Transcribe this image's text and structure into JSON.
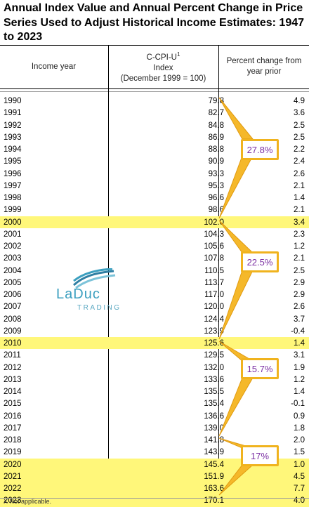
{
  "title": "Annual Index Value and Annual Percent Change in Price Series Used to Adjust Historical Income Estimates: 1947 to 2023",
  "headers": {
    "year": "Income year",
    "index_line1": "C-CPI-U",
    "index_sup": "1",
    "index_line2": "Index",
    "index_line3": "(December 1999 = 100)",
    "pct": "Percent change from year prior"
  },
  "rows": [
    {
      "year": "1990",
      "index": "79.8",
      "pct": "4.9"
    },
    {
      "year": "1991",
      "index": "82.7",
      "pct": "3.6"
    },
    {
      "year": "1992",
      "index": "84.8",
      "pct": "2.5"
    },
    {
      "year": "1993",
      "index": "86.9",
      "pct": "2.5"
    },
    {
      "year": "1994",
      "index": "88.8",
      "pct": "2.2"
    },
    {
      "year": "1995",
      "index": "90.9",
      "pct": "2.4"
    },
    {
      "year": "1996",
      "index": "93.3",
      "pct": "2.6"
    },
    {
      "year": "1997",
      "index": "95.3",
      "pct": "2.1"
    },
    {
      "year": "1998",
      "index": "96.6",
      "pct": "1.4"
    },
    {
      "year": "1999",
      "index": "98.6",
      "pct": "2.1"
    },
    {
      "year": "2000",
      "index": "102.0",
      "pct": "3.4",
      "highlight": true
    },
    {
      "year": "2001",
      "index": "104.3",
      "pct": "2.3"
    },
    {
      "year": "2002",
      "index": "105.6",
      "pct": "1.2"
    },
    {
      "year": "2003",
      "index": "107.8",
      "pct": "2.1"
    },
    {
      "year": "2004",
      "index": "110.5",
      "pct": "2.5"
    },
    {
      "year": "2005",
      "index": "113.7",
      "pct": "2.9"
    },
    {
      "year": "2006",
      "index": "117.0",
      "pct": "2.9"
    },
    {
      "year": "2007",
      "index": "120.0",
      "pct": "2.6"
    },
    {
      "year": "2008",
      "index": "124.4",
      "pct": "3.7"
    },
    {
      "year": "2009",
      "index": "123.9",
      "pct": "-0.4"
    },
    {
      "year": "2010",
      "index": "125.6",
      "pct": "1.4",
      "highlight": true
    },
    {
      "year": "2011",
      "index": "129.5",
      "pct": "3.1"
    },
    {
      "year": "2012",
      "index": "132.0",
      "pct": "1.9"
    },
    {
      "year": "2013",
      "index": "133.6",
      "pct": "1.2"
    },
    {
      "year": "2014",
      "index": "135.5",
      "pct": "1.4"
    },
    {
      "year": "2015",
      "index": "135.4",
      "pct": "-0.1"
    },
    {
      "year": "2016",
      "index": "136.6",
      "pct": "0.9"
    },
    {
      "year": "2017",
      "index": "139.0",
      "pct": "1.8"
    },
    {
      "year": "2018",
      "index": "141.8",
      "pct": "2.0"
    },
    {
      "year": "2019",
      "index": "143.9",
      "pct": "1.5"
    },
    {
      "year": "2020",
      "index": "145.4",
      "pct": "1.0",
      "highlight": true
    },
    {
      "year": "2021",
      "index": "151.9",
      "pct": "4.5",
      "highlight": true
    },
    {
      "year": "2022",
      "index": "163.6",
      "pct": "7.7",
      "highlight": true
    },
    {
      "year": "2023",
      "index": "170.1",
      "pct": "4.0",
      "highlight": true
    }
  ],
  "callouts": [
    "27.8%",
    "22.5%",
    "15.7%",
    "17%"
  ],
  "logo": {
    "word": "LaDuc",
    "sub": "TRADING"
  },
  "footer": "X Not applicable.",
  "colors": {
    "highlight": "#fff77a",
    "callout_border": "#f0b31e",
    "callout_text": "#7b2fa3",
    "logo": "#3b9fbf"
  }
}
